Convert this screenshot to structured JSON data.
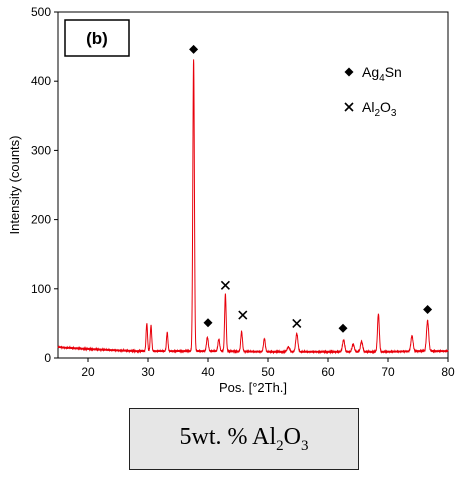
{
  "chart_data": {
    "type": "line",
    "panel_label": "(b)",
    "xlabel": "Pos. [°2Th.]",
    "ylabel": "Intensity (counts)",
    "xlim": [
      15,
      80
    ],
    "ylim": [
      0,
      500
    ],
    "xticks": [
      20,
      30,
      40,
      50,
      60,
      70,
      80
    ],
    "yticks": [
      0,
      100,
      200,
      300,
      400,
      500
    ],
    "line_color": "#e8000b",
    "baseline": [
      [
        15,
        16
      ],
      [
        16,
        15
      ],
      [
        20,
        13
      ],
      [
        25,
        11
      ],
      [
        28,
        10
      ],
      [
        30,
        10
      ],
      [
        32,
        10
      ],
      [
        35,
        10
      ],
      [
        40,
        10
      ],
      [
        50,
        9
      ],
      [
        60,
        9
      ],
      [
        70,
        9
      ],
      [
        75,
        10
      ],
      [
        80,
        10
      ]
    ],
    "peaks": [
      {
        "x": 29.8,
        "y": 50,
        "w": 0.12
      },
      {
        "x": 30.5,
        "y": 47,
        "w": 0.12
      },
      {
        "x": 33.2,
        "y": 37,
        "w": 0.12
      },
      {
        "x": 37.6,
        "y": 432,
        "w": 0.13
      },
      {
        "x": 39.9,
        "y": 30,
        "w": 0.15
      },
      {
        "x": 41.8,
        "y": 27,
        "w": 0.15
      },
      {
        "x": 42.9,
        "y": 92,
        "w": 0.13
      },
      {
        "x": 45.6,
        "y": 38,
        "w": 0.14
      },
      {
        "x": 49.4,
        "y": 28,
        "w": 0.15
      },
      {
        "x": 53.4,
        "y": 16,
        "w": 0.2
      },
      {
        "x": 54.8,
        "y": 35,
        "w": 0.18
      },
      {
        "x": 62.6,
        "y": 26,
        "w": 0.18
      },
      {
        "x": 64.2,
        "y": 20,
        "w": 0.18
      },
      {
        "x": 65.6,
        "y": 24,
        "w": 0.18
      },
      {
        "x": 68.4,
        "y": 64,
        "w": 0.15
      },
      {
        "x": 74.0,
        "y": 32,
        "w": 0.18
      },
      {
        "x": 76.6,
        "y": 54,
        "w": 0.18
      }
    ],
    "markers": [
      {
        "symbol": "diamond",
        "x": 37.6,
        "y": 446
      },
      {
        "symbol": "diamond",
        "x": 40.0,
        "y": 51
      },
      {
        "symbol": "cross",
        "x": 42.9,
        "y": 105
      },
      {
        "symbol": "cross",
        "x": 45.8,
        "y": 62
      },
      {
        "symbol": "cross",
        "x": 54.8,
        "y": 50
      },
      {
        "symbol": "diamond",
        "x": 62.5,
        "y": 43
      },
      {
        "symbol": "diamond",
        "x": 76.6,
        "y": 70
      }
    ],
    "legend": {
      "placement": "top-right",
      "entries": [
        {
          "symbol": "diamond",
          "label_main": "Ag",
          "label_sub": "4",
          "label_tail": "Sn"
        },
        {
          "symbol": "cross",
          "label_main": "Al",
          "label_sub": "2",
          "label_tail": "O",
          "label_sub2": "3"
        }
      ]
    }
  },
  "caption": {
    "prefix": "5wt. % Al",
    "sub1": "2",
    "mid": "O",
    "sub2": "3"
  }
}
